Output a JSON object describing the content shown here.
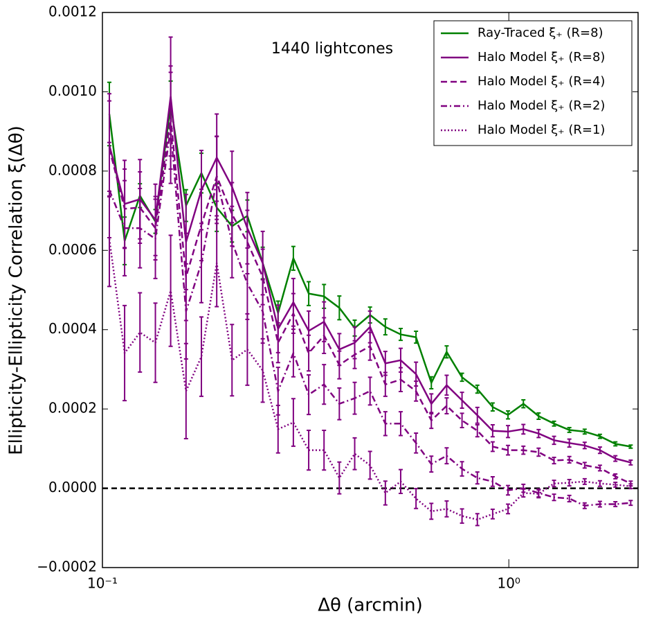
{
  "chart_data": {
    "type": "line",
    "log_x": true,
    "annotation": "1440 lightcones",
    "xlabel": "Δθ (arcmin)",
    "ylabel": "Ellipticity-Ellipticity Correlation ξ(Δθ)",
    "legend": "upper right",
    "xlim": [
      0.1,
      2.08
    ],
    "xticks": [
      {
        "value": 0.1,
        "label": "10⁻¹"
      },
      {
        "value": 1,
        "label": "10⁰"
      }
    ],
    "ylim": [
      -0.0002,
      0.0012
    ],
    "yticks": [
      {
        "value": -0.0002,
        "label": "−0.0002"
      },
      {
        "value": 0,
        "label": "0.0000"
      },
      {
        "value": 0.0002,
        "label": "0.0002"
      },
      {
        "value": 0.0004,
        "label": "0.0004"
      },
      {
        "value": 0.0006,
        "label": "0.0006"
      },
      {
        "value": 0.0008,
        "label": "0.0008"
      },
      {
        "value": 0.001,
        "label": "0.0010"
      },
      {
        "value": 0.0012,
        "label": "0.0012"
      }
    ],
    "hlines": [
      0
    ],
    "x": [
      0.104,
      0.1134,
      0.1237,
      0.135,
      0.1472,
      0.1606,
      0.1752,
      0.1911,
      0.2084,
      0.2273,
      0.248,
      0.2705,
      0.295,
      0.3218,
      0.351,
      0.3828,
      0.4176,
      0.4555,
      0.4968,
      0.5419,
      0.5911,
      0.6447,
      0.7032,
      0.7671,
      0.8367,
      0.9126,
      0.9954,
      1.086,
      1.184,
      1.292,
      1.409,
      1.537,
      1.676,
      1.829,
      1.995
    ],
    "series": [
      {
        "name": "Ray-Traced ξ₊ (R=8)",
        "color": "#008000",
        "dash": "solid",
        "values": [
          0.000944,
          0.000624,
          0.000738,
          0.000673,
          0.000967,
          0.000713,
          0.000795,
          0.000708,
          0.000661,
          0.000687,
          0.000568,
          0.000442,
          0.00058,
          0.000491,
          0.000484,
          0.000455,
          0.000404,
          0.000437,
          0.000407,
          0.000388,
          0.000381,
          0.000266,
          0.000344,
          0.00028,
          0.00025,
          0.000205,
          0.000185,
          0.000213,
          0.000182,
          0.000163,
          0.000147,
          0.000143,
          0.000131,
          0.000112,
          0.000105
        ],
        "errors": [
          8e-05,
          6e-05,
          3e-05,
          3e-05,
          6e-05,
          4e-05,
          5e-05,
          6e-05,
          4e-05,
          4e-05,
          4e-05,
          3e-05,
          3e-05,
          3e-05,
          3e-05,
          3e-05,
          2e-05,
          2e-05,
          2e-05,
          1.5e-05,
          1.5e-05,
          1.5e-05,
          1.5e-05,
          1e-05,
          1e-05,
          1e-05,
          1e-05,
          1e-05,
          8e-06,
          6e-06,
          6e-06,
          6e-06,
          5e-06,
          5e-06,
          4e-06
        ]
      },
      {
        "name": "Halo Model ξ₊ (R=8)",
        "color": "#800080",
        "dash": "solid",
        "values": [
          0.000865,
          0.000717,
          0.000729,
          0.000677,
          0.000988,
          0.000621,
          0.000752,
          0.000834,
          0.00076,
          0.000656,
          0.000568,
          0.000402,
          0.000469,
          0.000397,
          0.00042,
          0.00035,
          0.000367,
          0.000407,
          0.000315,
          0.000323,
          0.000288,
          0.000213,
          0.00026,
          0.000222,
          0.000184,
          0.000145,
          0.000143,
          0.000149,
          0.000138,
          0.000121,
          0.000114,
          0.000108,
          9.6e-05,
          7.5e-05,
          6.5e-05
        ],
        "errors": [
          0.00013,
          0.00011,
          0.0001,
          9e-05,
          0.00015,
          0.00012,
          0.0001,
          0.00011,
          9e-05,
          9e-05,
          8e-05,
          6e-05,
          6e-05,
          5e-05,
          5e-05,
          4e-05,
          4e-05,
          4e-05,
          3e-05,
          3e-05,
          3e-05,
          2.5e-05,
          2.5e-05,
          2e-05,
          2e-05,
          1.5e-05,
          1.5e-05,
          1.2e-05,
          1e-05,
          1e-05,
          1e-05,
          8e-06,
          8e-06,
          7e-06,
          6e-06
        ]
      },
      {
        "name": "Halo Model ξ₊ (R=4)",
        "color": "#800080",
        "dash": "dashed",
        "values": [
          0.000857,
          0.000705,
          0.000708,
          0.000656,
          0.000935,
          0.000533,
          0.000664,
          0.000787,
          0.000691,
          0.000621,
          0.000533,
          0.000367,
          0.000441,
          0.000341,
          0.000385,
          0.000311,
          0.000337,
          0.000358,
          0.000262,
          0.000274,
          0.000245,
          0.000171,
          0.000208,
          0.000171,
          0.000145,
          0.000105,
          9.6e-05,
          9.6e-05,
          9.1e-05,
          7e-05,
          7.2e-05,
          5.8e-05,
          5.1e-05,
          3e-05,
          1.2e-05
        ],
        "errors": [
          0.00012,
          0.0001,
          9e-05,
          8e-05,
          0.00013,
          0.00011,
          9e-05,
          0.0001,
          8e-05,
          8e-05,
          7e-05,
          5e-05,
          5e-05,
          4.5e-05,
          4.5e-05,
          3.5e-05,
          3.5e-05,
          3.5e-05,
          3e-05,
          3e-05,
          2.5e-05,
          2e-05,
          2e-05,
          1.8e-05,
          1.5e-05,
          1.2e-05,
          1.2e-05,
          1e-05,
          1e-05,
          8e-06,
          8e-06,
          7e-06,
          7e-06,
          6e-06,
          6e-06
        ]
      },
      {
        "name": "Halo Model ξ₊ (R=2)",
        "color": "#800080",
        "dash": "dashdot",
        "values": [
          0.000752,
          0.000656,
          0.000656,
          0.000629,
          0.000909,
          0.000446,
          0.000568,
          0.000778,
          0.000621,
          0.000516,
          0.000446,
          0.000245,
          0.000341,
          0.000236,
          0.000262,
          0.000213,
          0.000227,
          0.000245,
          0.000163,
          0.000163,
          0.000114,
          6.1e-05,
          8.2e-05,
          4.9e-05,
          2.6e-05,
          1.7e-05,
          -5e-06,
          0,
          -1.2e-05,
          -2.3e-05,
          -2.6e-05,
          -4.4e-05,
          -4e-05,
          -4e-05,
          -3.7e-05
        ],
        "errors": [
          0.00012,
          0.00012,
          0.0001,
          0.0001,
          0.00014,
          0.00012,
          0.0001,
          0.00011,
          9e-05,
          9e-05,
          8e-05,
          6e-05,
          6e-05,
          5e-05,
          5e-05,
          4e-05,
          4e-05,
          3.5e-05,
          3e-05,
          3e-05,
          2.5e-05,
          2e-05,
          2e-05,
          1.8e-05,
          1.5e-05,
          1.2e-05,
          1.2e-05,
          1e-05,
          1e-05,
          8e-06,
          8e-06,
          7e-06,
          7e-06,
          6e-06,
          6e-06
        ]
      },
      {
        "name": "Halo Model ξ₊ (R=1)",
        "color": "#800080",
        "dash": "dotted",
        "values": [
          0.000629,
          0.000341,
          0.000393,
          0.000367,
          0.000498,
          0.000245,
          0.000332,
          0.000568,
          0.000323,
          0.00035,
          0.000297,
          0.000149,
          0.000166,
          9.6e-05,
          9.6e-05,
          2.6e-05,
          8.7e-05,
          5.8e-05,
          -1.2e-05,
          1.7e-05,
          -2.6e-05,
          -5.8e-05,
          -5.2e-05,
          -7e-05,
          -7.9e-05,
          -6.5e-05,
          -5.2e-05,
          -1.2e-05,
          -1.4e-05,
          1.2e-05,
          1.4e-05,
          1.7e-05,
          1.2e-05,
          9e-06,
          5e-06
        ],
        "errors": [
          0.00012,
          0.00012,
          0.0001,
          0.0001,
          0.00014,
          0.00012,
          0.0001,
          0.00011,
          9e-05,
          9e-05,
          8e-05,
          6e-05,
          6e-05,
          5e-05,
          5e-05,
          4e-05,
          4e-05,
          3.5e-05,
          3e-05,
          3e-05,
          2.5e-05,
          2e-05,
          2e-05,
          1.8e-05,
          1.5e-05,
          1.2e-05,
          1.2e-05,
          1e-05,
          1e-05,
          8e-06,
          8e-06,
          7e-06,
          7e-06,
          6e-06,
          6e-06
        ]
      }
    ]
  }
}
